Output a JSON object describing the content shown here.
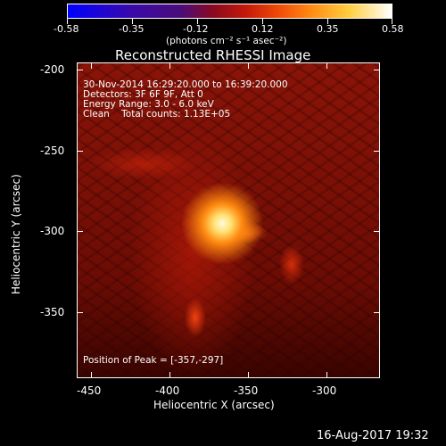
{
  "colorbar": {
    "tick_labels": [
      "-0.58",
      "-0.35",
      "-0.12",
      "0.12",
      "0.35",
      "0.58"
    ],
    "units": "(photons cm⁻² s⁻¹ asec⁻²)"
  },
  "title": "Reconstructed RHESSI Image",
  "info": {
    "time_range": "30-Nov-2014 16:29:20.000 to 16:39:20.000",
    "detectors": "Detectors: 3F 6F 9F, Att 0",
    "energy": "Energy Range: 3.0 - 6.0 keV",
    "clean": "Clean    Total counts: 1.13E+05",
    "peak": "Position of Peak = [-357,-297]"
  },
  "axes": {
    "xlabel": "Heliocentric X (arcsec)",
    "ylabel": "Heliocentric Y (arcsec)",
    "x_ticks": [
      "-450",
      "-400",
      "-350",
      "-300"
    ],
    "y_ticks": [
      "-200",
      "-250",
      "-300",
      "-350"
    ]
  },
  "footer": {
    "date": "16-Aug-2017 19:32"
  }
}
